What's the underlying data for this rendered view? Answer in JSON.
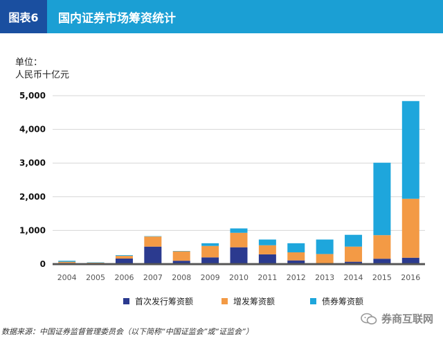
{
  "header": {
    "tag": "图表6",
    "title": "国内证券市场筹资统计"
  },
  "unit": {
    "line1": "单位：",
    "line2": "人民币十亿元"
  },
  "source": "数据来源：中国证券监督管理委员会（以下简称“中国证监会”或“证监会”）",
  "watermark": "券商互联网",
  "colors": {
    "header_bg": "#1b9fd4",
    "tag_bg": "#1a4fa0",
    "ipo": "#2b3a8f",
    "secondary": "#f39a45",
    "bond": "#1ea6dc"
  },
  "chart_data": {
    "type": "bar",
    "stacked": true,
    "categories": [
      "2004",
      "2005",
      "2006",
      "2007",
      "2008",
      "2009",
      "2010",
      "2011",
      "2012",
      "2013",
      "2014",
      "2015",
      "2016"
    ],
    "series": [
      {
        "name": "首次发行筹资额",
        "color": "#2b3a8f",
        "values": [
          35,
          6,
          165,
          520,
          100,
          200,
          500,
          290,
          110,
          0,
          70,
          160,
          190
        ]
      },
      {
        "name": "增发筹资额",
        "color": "#f39a45",
        "values": [
          35,
          35,
          80,
          300,
          280,
          340,
          430,
          270,
          240,
          300,
          450,
          700,
          1750
        ]
      },
      {
        "name": "债券筹资额",
        "color": "#1ea6dc",
        "values": [
          30,
          10,
          20,
          10,
          10,
          80,
          130,
          170,
          270,
          430,
          350,
          2150,
          2900
        ]
      }
    ],
    "yticks": [
      "0",
      "1,000",
      "2,000",
      "3,000",
      "4,000",
      "5,000"
    ],
    "ylim": [
      0,
      5000
    ],
    "grid": true,
    "legend": "bottom"
  }
}
